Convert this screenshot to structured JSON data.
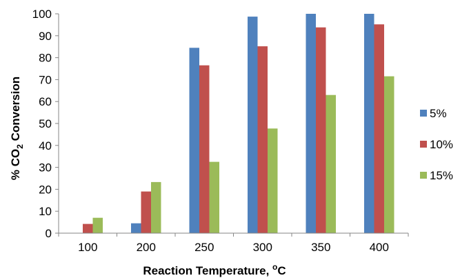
{
  "chart_data": {
    "type": "bar",
    "xlabel": "Reaction Temperature, oC",
    "xlabel_parts": {
      "main": "Reaction Temperature, ",
      "sup": "o",
      "tail": "C"
    },
    "ylabel": "% CO2 Conversion",
    "ylabel_parts": {
      "pre": "% CO",
      "sub": "2",
      "post": " Conversion"
    },
    "categories": [
      "100",
      "200",
      "250",
      "300",
      "350",
      "400"
    ],
    "series": [
      {
        "name": "5%",
        "color": "#4F81BD",
        "values": [
          0,
          4.5,
          84.5,
          98.7,
          100,
          100
        ]
      },
      {
        "name": "10%",
        "color": "#C0504D",
        "values": [
          4.2,
          19,
          76.5,
          85.2,
          93.8,
          95.2
        ]
      },
      {
        "name": "15%",
        "color": "#9BBB59",
        "values": [
          7,
          23.3,
          32.5,
          47.7,
          63,
          71.5
        ]
      }
    ],
    "ylim": [
      0,
      100
    ],
    "yticks": [
      0,
      10,
      20,
      30,
      40,
      50,
      60,
      70,
      80,
      90,
      100
    ],
    "grid": false,
    "legend_position": "right"
  }
}
